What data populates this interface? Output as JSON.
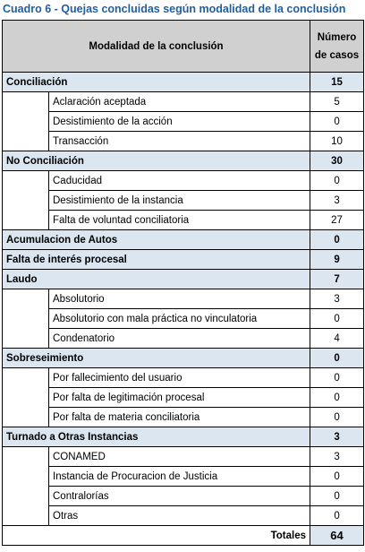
{
  "title": "Cuadro 6 - Quejas concluidas según modalidad de la conclusión",
  "headers": {
    "modalidad": "Modalidad de la conclusión",
    "numero": "Número de casos"
  },
  "groups": [
    {
      "label": "Conciliación",
      "value": "15",
      "items": [
        {
          "label": "Aclaración aceptada",
          "value": "5"
        },
        {
          "label": "Desistimiento de la acción",
          "value": "0"
        },
        {
          "label": "Transacción",
          "value": "10"
        }
      ]
    },
    {
      "label": "No Conciliación",
      "value": "30",
      "items": [
        {
          "label": "Caducidad",
          "value": "0"
        },
        {
          "label": "Desistimiento de la instancia",
          "value": "3"
        },
        {
          "label": "Falta de voluntad conciliatoria",
          "value": "27"
        }
      ]
    },
    {
      "label": "Acumulacion de Autos",
      "value": "0",
      "items": []
    },
    {
      "label": "Falta de interés procesal",
      "value": "9",
      "items": []
    },
    {
      "label": "Laudo",
      "value": "7",
      "items": [
        {
          "label": "Absolutorio",
          "value": "3"
        },
        {
          "label": "Absolutorio con mala práctica no vinculatoria",
          "value": "0"
        },
        {
          "label": "Condenatorio",
          "value": "4"
        }
      ]
    },
    {
      "label": "Sobreseimiento",
      "value": "0",
      "items": [
        {
          "label": "Por fallecimiento del usuario",
          "value": "0"
        },
        {
          "label": "Por falta de legitimación procesal",
          "value": "0"
        },
        {
          "label": "Por falta de materia conciliatoria",
          "value": "0"
        }
      ]
    },
    {
      "label": "Turnado a Otras Instancias",
      "value": "3",
      "items": [
        {
          "label": "CONAMED",
          "value": "3"
        },
        {
          "label": "Instancia de Procuracion de Justicia",
          "value": "0"
        },
        {
          "label": "Contralorías",
          "value": "0"
        },
        {
          "label": "Otras",
          "value": "0"
        }
      ]
    }
  ],
  "total": {
    "label": "Totales",
    "value": "64"
  }
}
